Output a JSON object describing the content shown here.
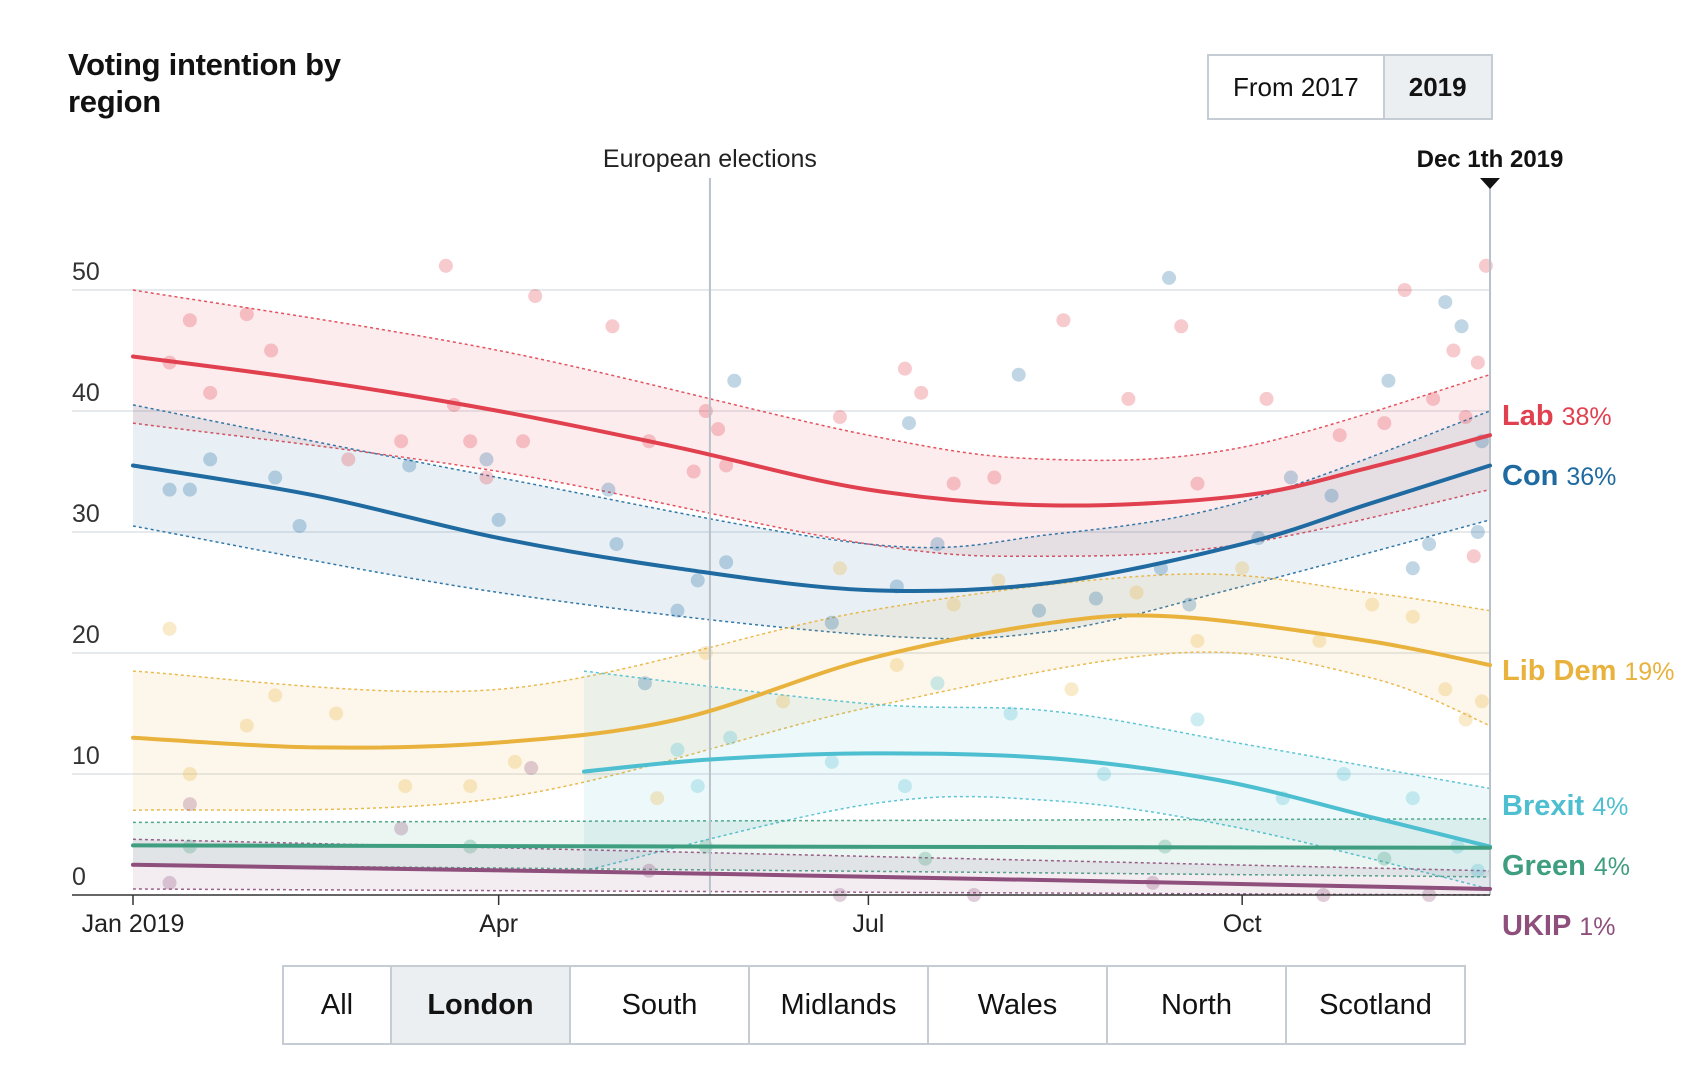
{
  "title": "Voting intention by region",
  "period_toggle": {
    "options": [
      "From 2017",
      "2019"
    ],
    "selected": "2019"
  },
  "regions": {
    "tabs": [
      "All",
      "London",
      "South",
      "Midlands",
      "Wales",
      "North",
      "Scotland"
    ],
    "selected": "London"
  },
  "chart_data": {
    "type": "line",
    "x_type": "date",
    "xlim": [
      "2019-01-01",
      "2019-12-01"
    ],
    "ylim": [
      0,
      50
    ],
    "y_ticks": [
      0,
      10,
      20,
      30,
      40,
      50
    ],
    "x_ticks": [
      {
        "date": "2019-01-01",
        "label": "Jan 2019"
      },
      {
        "date": "2019-04-01",
        "label": "Apr"
      },
      {
        "date": "2019-07-01",
        "label": "Jul"
      },
      {
        "date": "2019-10-01",
        "label": "Oct"
      }
    ],
    "grid": true,
    "annotations": [
      {
        "date": "2019-05-23",
        "label": "European elections"
      },
      {
        "date": "2019-12-01",
        "label": "Dec 1th 2019"
      }
    ],
    "series": [
      {
        "name": "Lab",
        "final_label": "38%",
        "color": "#e1404f",
        "trend": [
          {
            "x": "2019-01-01",
            "y": 44.5
          },
          {
            "x": "2019-02-15",
            "y": 42.5
          },
          {
            "x": "2019-04-01",
            "y": 40.0
          },
          {
            "x": "2019-05-15",
            "y": 37.0
          },
          {
            "x": "2019-07-01",
            "y": 33.5
          },
          {
            "x": "2019-08-15",
            "y": 32.2
          },
          {
            "x": "2019-10-01",
            "y": 33.0
          },
          {
            "x": "2019-11-01",
            "y": 35.3
          },
          {
            "x": "2019-12-01",
            "y": 38.0
          }
        ],
        "lower": [
          {
            "x": "2019-01-01",
            "y": 39.0
          },
          {
            "x": "2019-04-01",
            "y": 35.0
          },
          {
            "x": "2019-07-01",
            "y": 29.0
          },
          {
            "x": "2019-08-15",
            "y": 28.0
          },
          {
            "x": "2019-10-01",
            "y": 29.0
          },
          {
            "x": "2019-12-01",
            "y": 33.5
          }
        ],
        "upper": [
          {
            "x": "2019-01-01",
            "y": 50.0
          },
          {
            "x": "2019-04-01",
            "y": 45.0
          },
          {
            "x": "2019-07-01",
            "y": 38.0
          },
          {
            "x": "2019-08-15",
            "y": 36.0
          },
          {
            "x": "2019-10-01",
            "y": 37.0
          },
          {
            "x": "2019-12-01",
            "y": 43.0
          }
        ],
        "polls": [
          {
            "x": "2019-01-10",
            "y": 44
          },
          {
            "x": "2019-01-15",
            "y": 47.5
          },
          {
            "x": "2019-01-20",
            "y": 41.5
          },
          {
            "x": "2019-01-29",
            "y": 48
          },
          {
            "x": "2019-02-04",
            "y": 45
          },
          {
            "x": "2019-02-23",
            "y": 36
          },
          {
            "x": "2019-03-08",
            "y": 37.5
          },
          {
            "x": "2019-03-19",
            "y": 52
          },
          {
            "x": "2019-03-21",
            "y": 40.5
          },
          {
            "x": "2019-03-25",
            "y": 37.5
          },
          {
            "x": "2019-03-29",
            "y": 34.5
          },
          {
            "x": "2019-04-07",
            "y": 37.5
          },
          {
            "x": "2019-04-10",
            "y": 49.5
          },
          {
            "x": "2019-04-29",
            "y": 47
          },
          {
            "x": "2019-05-08",
            "y": 37.5
          },
          {
            "x": "2019-05-19",
            "y": 35
          },
          {
            "x": "2019-05-22",
            "y": 40
          },
          {
            "x": "2019-05-25",
            "y": 38.5
          },
          {
            "x": "2019-05-27",
            "y": 35.5
          },
          {
            "x": "2019-06-24",
            "y": 39.5
          },
          {
            "x": "2019-07-10",
            "y": 43.5
          },
          {
            "x": "2019-07-14",
            "y": 41.5
          },
          {
            "x": "2019-07-22",
            "y": 34
          },
          {
            "x": "2019-08-01",
            "y": 34.5
          },
          {
            "x": "2019-08-18",
            "y": 47.5
          },
          {
            "x": "2019-09-03",
            "y": 41
          },
          {
            "x": "2019-09-16",
            "y": 47
          },
          {
            "x": "2019-09-20",
            "y": 34
          },
          {
            "x": "2019-10-07",
            "y": 41
          },
          {
            "x": "2019-10-25",
            "y": 38
          },
          {
            "x": "2019-11-05",
            "y": 39
          },
          {
            "x": "2019-11-10",
            "y": 50
          },
          {
            "x": "2019-11-17",
            "y": 41
          },
          {
            "x": "2019-11-22",
            "y": 45
          },
          {
            "x": "2019-11-25",
            "y": 39.5
          },
          {
            "x": "2019-11-28",
            "y": 44
          },
          {
            "x": "2019-11-30",
            "y": 52
          },
          {
            "x": "2019-11-27",
            "y": 28
          }
        ]
      },
      {
        "name": "Con",
        "final_label": "36%",
        "color": "#1f6aa0",
        "trend": [
          {
            "x": "2019-01-01",
            "y": 35.5
          },
          {
            "x": "2019-02-15",
            "y": 33.0
          },
          {
            "x": "2019-04-01",
            "y": 29.5
          },
          {
            "x": "2019-05-15",
            "y": 27.0
          },
          {
            "x": "2019-07-01",
            "y": 25.2
          },
          {
            "x": "2019-08-15",
            "y": 25.8
          },
          {
            "x": "2019-10-01",
            "y": 29.0
          },
          {
            "x": "2019-11-01",
            "y": 32.3
          },
          {
            "x": "2019-12-01",
            "y": 35.5
          }
        ],
        "lower": [
          {
            "x": "2019-01-01",
            "y": 30.5
          },
          {
            "x": "2019-04-01",
            "y": 25.0
          },
          {
            "x": "2019-07-01",
            "y": 21.5
          },
          {
            "x": "2019-08-15",
            "y": 21.8
          },
          {
            "x": "2019-10-01",
            "y": 25.5
          },
          {
            "x": "2019-12-01",
            "y": 31.0
          }
        ],
        "upper": [
          {
            "x": "2019-01-01",
            "y": 40.5
          },
          {
            "x": "2019-04-01",
            "y": 34.5
          },
          {
            "x": "2019-07-01",
            "y": 29.0
          },
          {
            "x": "2019-08-15",
            "y": 29.8
          },
          {
            "x": "2019-10-01",
            "y": 32.5
          },
          {
            "x": "2019-12-01",
            "y": 40.0
          }
        ],
        "polls": [
          {
            "x": "2019-01-10",
            "y": 33.5
          },
          {
            "x": "2019-01-15",
            "y": 33.5
          },
          {
            "x": "2019-01-20",
            "y": 36
          },
          {
            "x": "2019-02-05",
            "y": 34.5
          },
          {
            "x": "2019-02-11",
            "y": 30.5
          },
          {
            "x": "2019-03-10",
            "y": 35.5
          },
          {
            "x": "2019-03-29",
            "y": 36
          },
          {
            "x": "2019-04-01",
            "y": 31
          },
          {
            "x": "2019-04-28",
            "y": 33.5
          },
          {
            "x": "2019-04-30",
            "y": 29
          },
          {
            "x": "2019-05-07",
            "y": 17.5
          },
          {
            "x": "2019-05-15",
            "y": 23.5
          },
          {
            "x": "2019-05-20",
            "y": 26
          },
          {
            "x": "2019-05-27",
            "y": 27.5
          },
          {
            "x": "2019-05-29",
            "y": 42.5
          },
          {
            "x": "2019-06-22",
            "y": 22.5
          },
          {
            "x": "2019-07-08",
            "y": 25.5
          },
          {
            "x": "2019-07-11",
            "y": 39
          },
          {
            "x": "2019-07-18",
            "y": 29
          },
          {
            "x": "2019-08-07",
            "y": 43
          },
          {
            "x": "2019-08-12",
            "y": 23.5
          },
          {
            "x": "2019-08-26",
            "y": 24.5
          },
          {
            "x": "2019-09-11",
            "y": 27
          },
          {
            "x": "2019-09-13",
            "y": 51
          },
          {
            "x": "2019-09-18",
            "y": 24
          },
          {
            "x": "2019-10-05",
            "y": 29.5
          },
          {
            "x": "2019-10-13",
            "y": 34.5
          },
          {
            "x": "2019-10-23",
            "y": 33
          },
          {
            "x": "2019-11-06",
            "y": 42.5
          },
          {
            "x": "2019-11-12",
            "y": 27
          },
          {
            "x": "2019-11-16",
            "y": 29
          },
          {
            "x": "2019-11-20",
            "y": 49
          },
          {
            "x": "2019-11-24",
            "y": 47
          },
          {
            "x": "2019-11-28",
            "y": 30
          },
          {
            "x": "2019-11-29",
            "y": 37.5
          }
        ]
      },
      {
        "name": "Lib Dem",
        "final_label": "19%",
        "color": "#e8b23d",
        "trend": [
          {
            "x": "2019-01-01",
            "y": 13.0
          },
          {
            "x": "2019-02-15",
            "y": 12.2
          },
          {
            "x": "2019-04-01",
            "y": 12.6
          },
          {
            "x": "2019-05-15",
            "y": 14.5
          },
          {
            "x": "2019-07-01",
            "y": 19.5
          },
          {
            "x": "2019-08-15",
            "y": 22.5
          },
          {
            "x": "2019-09-15",
            "y": 23.0
          },
          {
            "x": "2019-11-01",
            "y": 21.0
          },
          {
            "x": "2019-12-01",
            "y": 19.0
          }
        ],
        "lower": [
          {
            "x": "2019-01-01",
            "y": 7.0
          },
          {
            "x": "2019-04-01",
            "y": 8.0
          },
          {
            "x": "2019-07-01",
            "y": 15.5
          },
          {
            "x": "2019-09-15",
            "y": 20.0
          },
          {
            "x": "2019-11-01",
            "y": 18.0
          },
          {
            "x": "2019-12-01",
            "y": 14.0
          }
        ],
        "upper": [
          {
            "x": "2019-01-01",
            "y": 18.5
          },
          {
            "x": "2019-04-01",
            "y": 17.0
          },
          {
            "x": "2019-07-01",
            "y": 23.5
          },
          {
            "x": "2019-09-15",
            "y": 26.5
          },
          {
            "x": "2019-11-01",
            "y": 25.0
          },
          {
            "x": "2019-12-01",
            "y": 23.5
          }
        ],
        "polls": [
          {
            "x": "2019-01-10",
            "y": 22
          },
          {
            "x": "2019-01-15",
            "y": 10
          },
          {
            "x": "2019-01-29",
            "y": 14
          },
          {
            "x": "2019-02-05",
            "y": 16.5
          },
          {
            "x": "2019-02-20",
            "y": 15
          },
          {
            "x": "2019-03-09",
            "y": 9
          },
          {
            "x": "2019-03-25",
            "y": 9
          },
          {
            "x": "2019-04-05",
            "y": 11
          },
          {
            "x": "2019-05-10",
            "y": 8
          },
          {
            "x": "2019-05-22",
            "y": 20
          },
          {
            "x": "2019-06-10",
            "y": 16
          },
          {
            "x": "2019-06-24",
            "y": 27
          },
          {
            "x": "2019-07-08",
            "y": 19
          },
          {
            "x": "2019-07-22",
            "y": 24
          },
          {
            "x": "2019-08-02",
            "y": 26
          },
          {
            "x": "2019-08-20",
            "y": 17
          },
          {
            "x": "2019-09-05",
            "y": 25
          },
          {
            "x": "2019-09-20",
            "y": 21
          },
          {
            "x": "2019-10-01",
            "y": 27
          },
          {
            "x": "2019-10-20",
            "y": 21
          },
          {
            "x": "2019-11-02",
            "y": 24
          },
          {
            "x": "2019-11-12",
            "y": 23
          },
          {
            "x": "2019-11-20",
            "y": 17
          },
          {
            "x": "2019-11-25",
            "y": 14.5
          },
          {
            "x": "2019-11-29",
            "y": 16
          }
        ]
      },
      {
        "name": "Brexit",
        "final_label": "4%",
        "color": "#4dbfd0",
        "trend": [
          {
            "x": "2019-04-22",
            "y": 10.2
          },
          {
            "x": "2019-05-23",
            "y": 11.2
          },
          {
            "x": "2019-07-01",
            "y": 11.7
          },
          {
            "x": "2019-08-15",
            "y": 11.3
          },
          {
            "x": "2019-09-25",
            "y": 9.5
          },
          {
            "x": "2019-11-01",
            "y": 6.5
          },
          {
            "x": "2019-12-01",
            "y": 4.0
          }
        ],
        "lower": [
          {
            "x": "2019-04-22",
            "y": 2.0
          },
          {
            "x": "2019-07-01",
            "y": 7.5
          },
          {
            "x": "2019-08-15",
            "y": 7.8
          },
          {
            "x": "2019-10-01",
            "y": 5.5
          },
          {
            "x": "2019-12-01",
            "y": 0.5
          }
        ],
        "upper": [
          {
            "x": "2019-04-22",
            "y": 18.5
          },
          {
            "x": "2019-07-01",
            "y": 15.8
          },
          {
            "x": "2019-08-15",
            "y": 15.2
          },
          {
            "x": "2019-10-01",
            "y": 12.5
          },
          {
            "x": "2019-12-01",
            "y": 8.8
          }
        ],
        "polls": [
          {
            "x": "2019-05-15",
            "y": 12
          },
          {
            "x": "2019-05-20",
            "y": 9
          },
          {
            "x": "2019-05-28",
            "y": 13
          },
          {
            "x": "2019-06-22",
            "y": 11
          },
          {
            "x": "2019-07-10",
            "y": 9
          },
          {
            "x": "2019-07-18",
            "y": 17.5
          },
          {
            "x": "2019-08-05",
            "y": 15
          },
          {
            "x": "2019-08-28",
            "y": 10
          },
          {
            "x": "2019-09-20",
            "y": 14.5
          },
          {
            "x": "2019-10-11",
            "y": 8
          },
          {
            "x": "2019-10-26",
            "y": 10
          },
          {
            "x": "2019-11-12",
            "y": 8
          },
          {
            "x": "2019-11-23",
            "y": 4
          },
          {
            "x": "2019-11-28",
            "y": 2
          }
        ]
      },
      {
        "name": "Green",
        "final_label": "4%",
        "color": "#3f9e7f",
        "trend": [
          {
            "x": "2019-01-01",
            "y": 4.1
          },
          {
            "x": "2019-06-01",
            "y": 4.0
          },
          {
            "x": "2019-12-01",
            "y": 3.9
          }
        ],
        "lower": [
          {
            "x": "2019-01-01",
            "y": 2.5
          },
          {
            "x": "2019-12-01",
            "y": 1.5
          }
        ],
        "upper": [
          {
            "x": "2019-01-01",
            "y": 6.0
          },
          {
            "x": "2019-12-01",
            "y": 6.3
          }
        ],
        "polls": [
          {
            "x": "2019-01-15",
            "y": 4
          },
          {
            "x": "2019-03-25",
            "y": 4
          },
          {
            "x": "2019-05-22",
            "y": 4
          },
          {
            "x": "2019-07-15",
            "y": 3
          },
          {
            "x": "2019-09-12",
            "y": 4
          },
          {
            "x": "2019-11-05",
            "y": 3
          }
        ]
      },
      {
        "name": "UKIP",
        "final_label": "1%",
        "color": "#8e4f7c",
        "trend": [
          {
            "x": "2019-01-01",
            "y": 2.5
          },
          {
            "x": "2019-06-01",
            "y": 1.7
          },
          {
            "x": "2019-12-01",
            "y": 0.5
          }
        ],
        "lower": [
          {
            "x": "2019-01-01",
            "y": 0.5
          },
          {
            "x": "2019-12-01",
            "y": 0
          }
        ],
        "upper": [
          {
            "x": "2019-01-01",
            "y": 4.6
          },
          {
            "x": "2019-12-01",
            "y": 2.0
          }
        ],
        "polls": [
          {
            "x": "2019-01-10",
            "y": 1
          },
          {
            "x": "2019-01-15",
            "y": 7.5
          },
          {
            "x": "2019-03-08",
            "y": 5.5
          },
          {
            "x": "2019-04-09",
            "y": 10.5
          },
          {
            "x": "2019-05-08",
            "y": 2
          },
          {
            "x": "2019-06-24",
            "y": 0
          },
          {
            "x": "2019-07-27",
            "y": 0
          },
          {
            "x": "2019-09-09",
            "y": 1
          },
          {
            "x": "2019-10-21",
            "y": 0
          },
          {
            "x": "2019-11-16",
            "y": 0
          }
        ]
      }
    ]
  }
}
